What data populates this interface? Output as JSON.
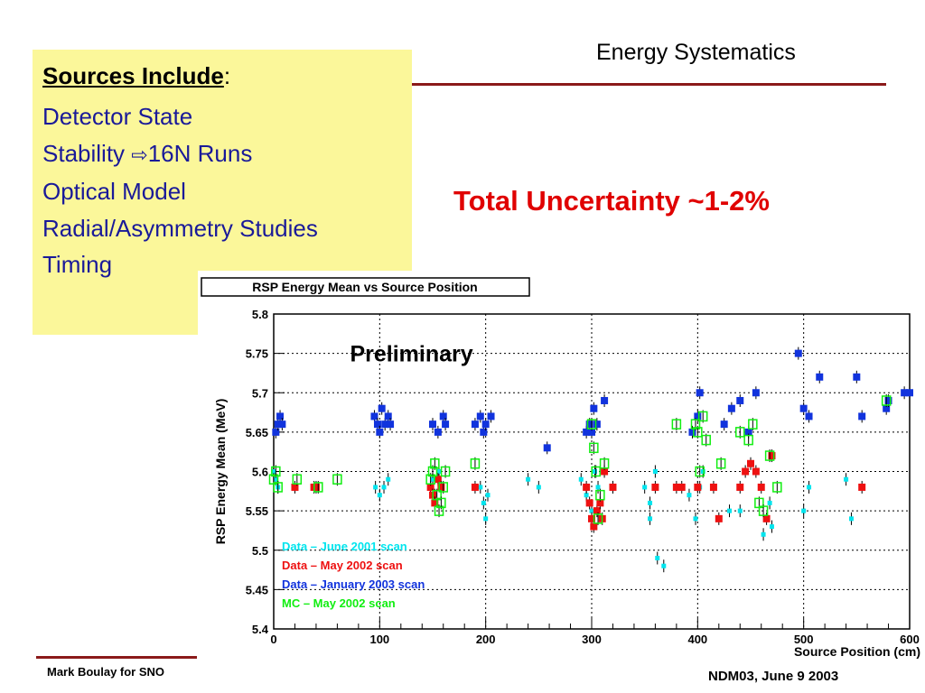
{
  "slide": {
    "title": "Energy Systematics",
    "sources_heading": "Sources Include",
    "sources_colon": ":",
    "sources": [
      "Detector State",
      "Stability",
      "16N Runs",
      "Optical Model",
      "Radial/Asymmetry Studies",
      "Timing"
    ],
    "arrow_glyph": "⇨",
    "total_uncertainty": "Total Uncertainty ~1-2%",
    "footer_author": "Mark Boulay for SNO",
    "footer_conference": "NDM03, June 9 2003"
  },
  "colors": {
    "accent_line": "#8b1a1a",
    "sources_box": "#fbf79a",
    "sources_text": "#1a1a99",
    "uncertainty_text": "#e00000"
  },
  "chart_data": {
    "type": "scatter",
    "title": "RSP Energy Mean vs Source Position",
    "annotation": "Preliminary",
    "xlabel": "Source Position (cm)",
    "ylabel": "RSP Energy Mean (MeV)",
    "xlim": [
      0,
      600
    ],
    "ylim": [
      5.4,
      5.8
    ],
    "xticks": [
      0,
      100,
      200,
      300,
      400,
      500,
      600
    ],
    "yticks": [
      5.4,
      5.45,
      5.5,
      5.55,
      5.6,
      5.65,
      5.7,
      5.75,
      5.8
    ],
    "grid": true,
    "legend_placement": "bottom-left",
    "series": [
      {
        "name": "Data – June 2001 scan",
        "color": "#00e5ee",
        "marker": "cross",
        "points": [
          [
            0,
            5.6
          ],
          [
            2,
            5.59
          ],
          [
            4,
            5.58
          ],
          [
            96,
            5.58
          ],
          [
            100,
            5.57
          ],
          [
            104,
            5.58
          ],
          [
            108,
            5.59
          ],
          [
            150,
            5.59
          ],
          [
            152,
            5.57
          ],
          [
            156,
            5.6
          ],
          [
            195,
            5.58
          ],
          [
            198,
            5.56
          ],
          [
            200,
            5.54
          ],
          [
            202,
            5.57
          ],
          [
            240,
            5.59
          ],
          [
            250,
            5.58
          ],
          [
            290,
            5.59
          ],
          [
            295,
            5.57
          ],
          [
            300,
            5.55
          ],
          [
            303,
            5.6
          ],
          [
            306,
            5.58
          ],
          [
            320,
            5.58
          ],
          [
            350,
            5.58
          ],
          [
            355,
            5.54
          ],
          [
            360,
            5.6
          ],
          [
            355,
            5.56
          ],
          [
            362,
            5.49
          ],
          [
            368,
            5.48
          ],
          [
            392,
            5.57
          ],
          [
            398,
            5.54
          ],
          [
            402,
            5.58
          ],
          [
            405,
            5.6
          ],
          [
            430,
            5.55
          ],
          [
            440,
            5.55
          ],
          [
            462,
            5.52
          ],
          [
            468,
            5.56
          ],
          [
            470,
            5.53
          ],
          [
            500,
            5.55
          ],
          [
            505,
            5.58
          ],
          [
            540,
            5.59
          ],
          [
            545,
            5.54
          ]
        ]
      },
      {
        "name": "Data – May 2002 scan",
        "color": "#ee1111",
        "marker": "square",
        "points": [
          [
            20,
            5.58
          ],
          [
            38,
            5.58
          ],
          [
            40,
            5.58
          ],
          [
            148,
            5.58
          ],
          [
            150,
            5.57
          ],
          [
            152,
            5.56
          ],
          [
            155,
            5.59
          ],
          [
            158,
            5.58
          ],
          [
            190,
            5.58
          ],
          [
            295,
            5.58
          ],
          [
            298,
            5.56
          ],
          [
            300,
            5.54
          ],
          [
            302,
            5.53
          ],
          [
            305,
            5.55
          ],
          [
            308,
            5.56
          ],
          [
            310,
            5.54
          ],
          [
            312,
            5.6
          ],
          [
            320,
            5.58
          ],
          [
            360,
            5.58
          ],
          [
            380,
            5.58
          ],
          [
            385,
            5.58
          ],
          [
            400,
            5.58
          ],
          [
            415,
            5.58
          ],
          [
            420,
            5.54
          ],
          [
            440,
            5.58
          ],
          [
            445,
            5.6
          ],
          [
            450,
            5.61
          ],
          [
            455,
            5.6
          ],
          [
            460,
            5.58
          ],
          [
            465,
            5.54
          ],
          [
            470,
            5.62
          ],
          [
            555,
            5.58
          ]
        ]
      },
      {
        "name": "Data – January 2003 scan",
        "color": "#1133dd",
        "marker": "square",
        "points": [
          [
            2,
            5.65
          ],
          [
            4,
            5.66
          ],
          [
            6,
            5.67
          ],
          [
            8,
            5.66
          ],
          [
            95,
            5.67
          ],
          [
            98,
            5.66
          ],
          [
            100,
            5.65
          ],
          [
            102,
            5.68
          ],
          [
            105,
            5.66
          ],
          [
            108,
            5.67
          ],
          [
            110,
            5.66
          ],
          [
            150,
            5.66
          ],
          [
            155,
            5.65
          ],
          [
            160,
            5.67
          ],
          [
            162,
            5.66
          ],
          [
            190,
            5.66
          ],
          [
            195,
            5.67
          ],
          [
            198,
            5.65
          ],
          [
            200,
            5.66
          ],
          [
            205,
            5.67
          ],
          [
            258,
            5.63
          ],
          [
            295,
            5.65
          ],
          [
            298,
            5.66
          ],
          [
            300,
            5.65
          ],
          [
            302,
            5.68
          ],
          [
            305,
            5.66
          ],
          [
            312,
            5.69
          ],
          [
            395,
            5.65
          ],
          [
            400,
            5.67
          ],
          [
            402,
            5.7
          ],
          [
            425,
            5.66
          ],
          [
            432,
            5.68
          ],
          [
            440,
            5.69
          ],
          [
            448,
            5.65
          ],
          [
            455,
            5.7
          ],
          [
            495,
            5.75
          ],
          [
            500,
            5.68
          ],
          [
            505,
            5.67
          ],
          [
            515,
            5.72
          ],
          [
            550,
            5.72
          ],
          [
            555,
            5.67
          ],
          [
            578,
            5.68
          ],
          [
            580,
            5.69
          ],
          [
            595,
            5.7
          ],
          [
            600,
            5.7
          ]
        ]
      },
      {
        "name": "MC – May 2002 scan",
        "color": "#11ee11",
        "marker": "open-square",
        "points": [
          [
            0,
            5.59
          ],
          [
            2,
            5.6
          ],
          [
            4,
            5.58
          ],
          [
            22,
            5.59
          ],
          [
            42,
            5.58
          ],
          [
            60,
            5.59
          ],
          [
            148,
            5.59
          ],
          [
            150,
            5.6
          ],
          [
            152,
            5.61
          ],
          [
            154,
            5.57
          ],
          [
            156,
            5.55
          ],
          [
            158,
            5.56
          ],
          [
            160,
            5.58
          ],
          [
            162,
            5.6
          ],
          [
            190,
            5.61
          ],
          [
            300,
            5.66
          ],
          [
            302,
            5.63
          ],
          [
            304,
            5.6
          ],
          [
            306,
            5.54
          ],
          [
            308,
            5.57
          ],
          [
            312,
            5.61
          ],
          [
            380,
            5.66
          ],
          [
            398,
            5.66
          ],
          [
            400,
            5.65
          ],
          [
            402,
            5.6
          ],
          [
            405,
            5.67
          ],
          [
            408,
            5.64
          ],
          [
            422,
            5.61
          ],
          [
            440,
            5.65
          ],
          [
            448,
            5.64
          ],
          [
            452,
            5.66
          ],
          [
            458,
            5.56
          ],
          [
            462,
            5.55
          ],
          [
            468,
            5.62
          ],
          [
            475,
            5.58
          ],
          [
            578,
            5.69
          ]
        ]
      }
    ]
  }
}
